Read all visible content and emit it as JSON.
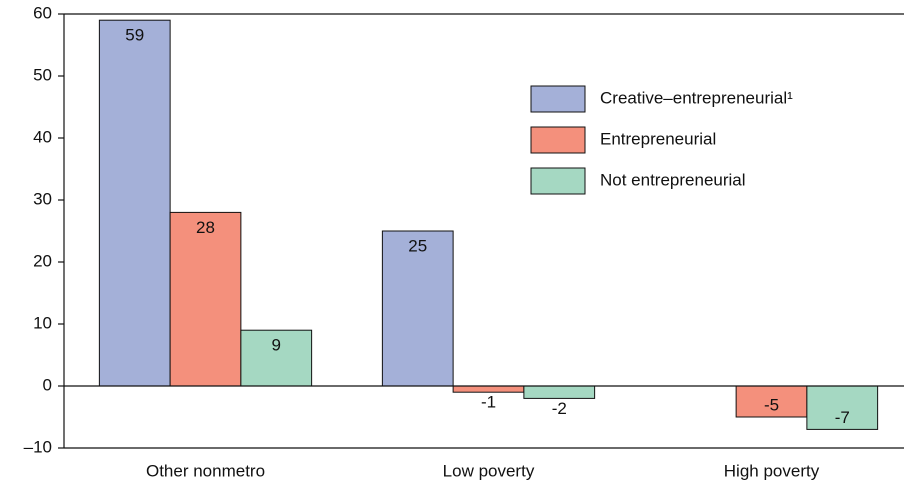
{
  "chart_data": {
    "type": "bar",
    "categories": [
      "Other nonmetro",
      "Low poverty",
      "High poverty"
    ],
    "series": [
      {
        "name": "Creative–entrepreneurial¹",
        "color": "#a4b0d8",
        "values": [
          59,
          25,
          null
        ]
      },
      {
        "name": "Entrepreneurial",
        "color": "#f4907c",
        "values": [
          28,
          -1,
          -5
        ]
      },
      {
        "name": "Not entrepreneurial",
        "color": "#a5d8c2",
        "values": [
          9,
          -2,
          -7
        ]
      }
    ],
    "ylim": [
      -10,
      60
    ],
    "yticks": [
      {
        "value": -10,
        "label": "–10"
      },
      0,
      10,
      20,
      30,
      40,
      50,
      60
    ],
    "legend": "upper right"
  }
}
